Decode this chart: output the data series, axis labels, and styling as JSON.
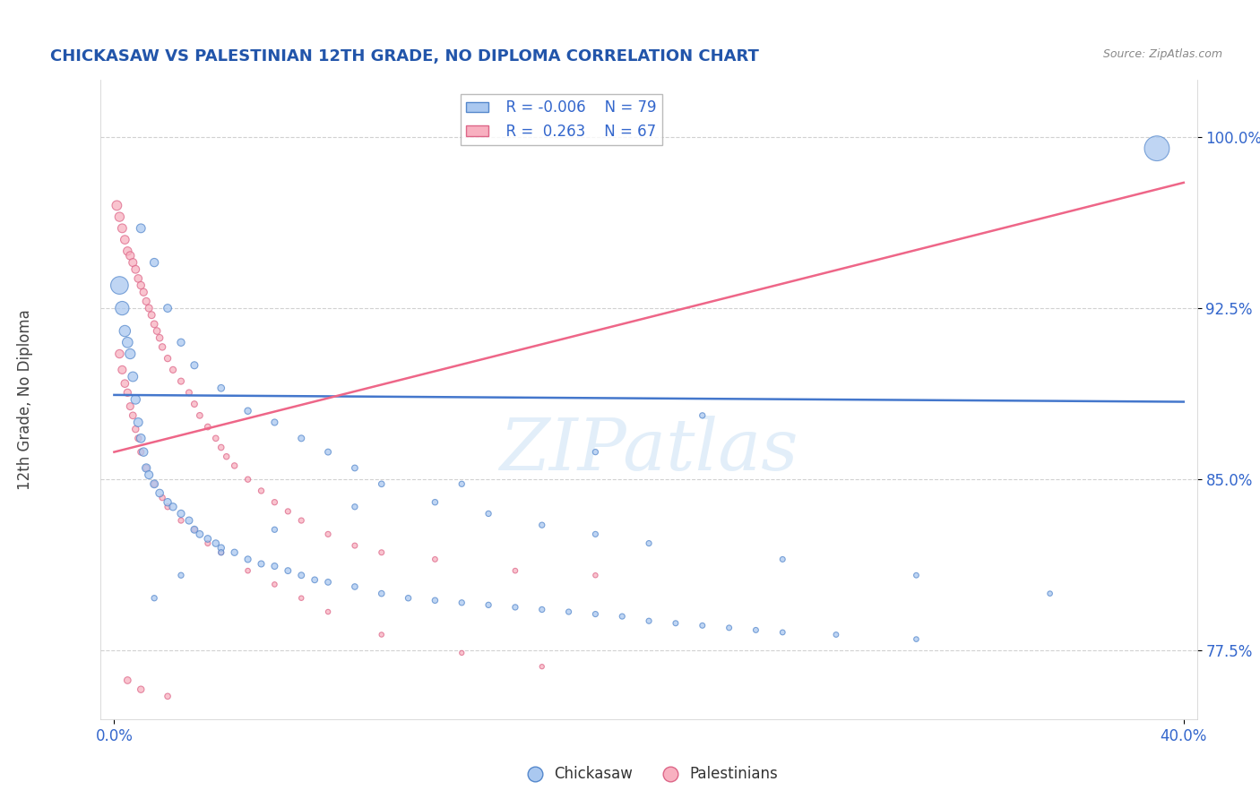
{
  "title": "CHICKASAW VS PALESTINIAN 12TH GRADE, NO DIPLOMA CORRELATION CHART",
  "source": "Source: ZipAtlas.com",
  "ylabel": "12th Grade, No Diploma",
  "ylim": [
    0.745,
    1.025
  ],
  "xlim": [
    -0.005,
    0.405
  ],
  "yticks": [
    0.775,
    0.85,
    0.925,
    1.0
  ],
  "ytick_labels": [
    "77.5%",
    "85.0%",
    "92.5%",
    "100.0%"
  ],
  "legend_r1": "R = -0.006",
  "legend_n1": "N = 79",
  "legend_r2": "R =  0.263",
  "legend_n2": "N = 67",
  "color_chickasaw_fill": "#aac8f0",
  "color_chickasaw_edge": "#5588cc",
  "color_palestinian_fill": "#f8b0c0",
  "color_palestinian_edge": "#dd6688",
  "color_line_chickasaw": "#4477cc",
  "color_line_palestinian": "#ee6688",
  "color_title": "#2255aa",
  "color_source": "#888888",
  "color_axis_text": "#3366cc",
  "background_color": "#ffffff",
  "watermark": "ZIPatlas",
  "chickasaw_x": [
    0.002,
    0.003,
    0.004,
    0.005,
    0.006,
    0.007,
    0.008,
    0.009,
    0.01,
    0.011,
    0.012,
    0.013,
    0.015,
    0.017,
    0.02,
    0.022,
    0.025,
    0.028,
    0.03,
    0.032,
    0.035,
    0.038,
    0.04,
    0.045,
    0.05,
    0.055,
    0.06,
    0.065,
    0.07,
    0.075,
    0.08,
    0.09,
    0.1,
    0.11,
    0.12,
    0.13,
    0.14,
    0.15,
    0.16,
    0.17,
    0.18,
    0.19,
    0.2,
    0.21,
    0.22,
    0.23,
    0.24,
    0.25,
    0.27,
    0.3,
    0.01,
    0.015,
    0.02,
    0.025,
    0.03,
    0.04,
    0.05,
    0.06,
    0.07,
    0.08,
    0.09,
    0.1,
    0.12,
    0.14,
    0.16,
    0.18,
    0.2,
    0.25,
    0.3,
    0.35,
    0.22,
    0.18,
    0.13,
    0.09,
    0.06,
    0.04,
    0.025,
    0.015,
    0.39
  ],
  "chickasaw_y": [
    0.935,
    0.925,
    0.915,
    0.91,
    0.905,
    0.895,
    0.885,
    0.875,
    0.868,
    0.862,
    0.855,
    0.852,
    0.848,
    0.844,
    0.84,
    0.838,
    0.835,
    0.832,
    0.828,
    0.826,
    0.824,
    0.822,
    0.82,
    0.818,
    0.815,
    0.813,
    0.812,
    0.81,
    0.808,
    0.806,
    0.805,
    0.803,
    0.8,
    0.798,
    0.797,
    0.796,
    0.795,
    0.794,
    0.793,
    0.792,
    0.791,
    0.79,
    0.788,
    0.787,
    0.786,
    0.785,
    0.784,
    0.783,
    0.782,
    0.78,
    0.96,
    0.945,
    0.925,
    0.91,
    0.9,
    0.89,
    0.88,
    0.875,
    0.868,
    0.862,
    0.855,
    0.848,
    0.84,
    0.835,
    0.83,
    0.826,
    0.822,
    0.815,
    0.808,
    0.8,
    0.878,
    0.862,
    0.848,
    0.838,
    0.828,
    0.818,
    0.808,
    0.798,
    0.995
  ],
  "chickasaw_sizes": [
    200,
    120,
    80,
    70,
    65,
    60,
    55,
    50,
    48,
    46,
    44,
    42,
    40,
    38,
    36,
    35,
    34,
    33,
    32,
    31,
    30,
    29,
    28,
    27,
    26,
    25,
    25,
    24,
    24,
    23,
    23,
    22,
    22,
    21,
    21,
    20,
    20,
    20,
    20,
    19,
    19,
    19,
    19,
    18,
    18,
    18,
    18,
    17,
    17,
    16,
    50,
    45,
    40,
    35,
    33,
    30,
    28,
    26,
    25,
    24,
    23,
    22,
    21,
    20,
    20,
    19,
    19,
    18,
    17,
    16,
    20,
    20,
    20,
    20,
    20,
    20,
    20,
    20,
    400
  ],
  "palestinian_x": [
    0.001,
    0.002,
    0.003,
    0.004,
    0.005,
    0.006,
    0.007,
    0.008,
    0.009,
    0.01,
    0.011,
    0.012,
    0.013,
    0.014,
    0.015,
    0.016,
    0.017,
    0.018,
    0.02,
    0.022,
    0.025,
    0.028,
    0.03,
    0.032,
    0.035,
    0.038,
    0.04,
    0.042,
    0.045,
    0.05,
    0.055,
    0.06,
    0.065,
    0.07,
    0.08,
    0.09,
    0.1,
    0.12,
    0.15,
    0.18,
    0.002,
    0.003,
    0.004,
    0.005,
    0.006,
    0.007,
    0.008,
    0.009,
    0.01,
    0.012,
    0.015,
    0.018,
    0.02,
    0.025,
    0.03,
    0.035,
    0.04,
    0.05,
    0.06,
    0.07,
    0.08,
    0.1,
    0.13,
    0.16,
    0.005,
    0.01,
    0.02
  ],
  "palestinian_y": [
    0.97,
    0.965,
    0.96,
    0.955,
    0.95,
    0.948,
    0.945,
    0.942,
    0.938,
    0.935,
    0.932,
    0.928,
    0.925,
    0.922,
    0.918,
    0.915,
    0.912,
    0.908,
    0.903,
    0.898,
    0.893,
    0.888,
    0.883,
    0.878,
    0.873,
    0.868,
    0.864,
    0.86,
    0.856,
    0.85,
    0.845,
    0.84,
    0.836,
    0.832,
    0.826,
    0.821,
    0.818,
    0.815,
    0.81,
    0.808,
    0.905,
    0.898,
    0.892,
    0.888,
    0.882,
    0.878,
    0.872,
    0.868,
    0.862,
    0.855,
    0.848,
    0.842,
    0.838,
    0.832,
    0.828,
    0.822,
    0.818,
    0.81,
    0.804,
    0.798,
    0.792,
    0.782,
    0.774,
    0.768,
    0.762,
    0.758,
    0.755
  ],
  "palestinian_sizes": [
    60,
    55,
    50,
    48,
    46,
    44,
    42,
    40,
    38,
    36,
    35,
    34,
    33,
    32,
    31,
    30,
    29,
    28,
    27,
    26,
    25,
    24,
    24,
    23,
    23,
    22,
    22,
    21,
    21,
    20,
    20,
    20,
    19,
    19,
    19,
    18,
    18,
    17,
    16,
    15,
    45,
    42,
    38,
    35,
    33,
    30,
    28,
    26,
    25,
    23,
    22,
    21,
    20,
    19,
    18,
    18,
    17,
    16,
    16,
    15,
    15,
    15,
    14,
    14,
    30,
    28,
    22
  ],
  "chick_trend_x": [
    0.0,
    0.4
  ],
  "chick_trend_y": [
    0.887,
    0.884
  ],
  "pal_trend_x": [
    0.0,
    0.4
  ],
  "pal_trend_y": [
    0.862,
    0.98
  ]
}
